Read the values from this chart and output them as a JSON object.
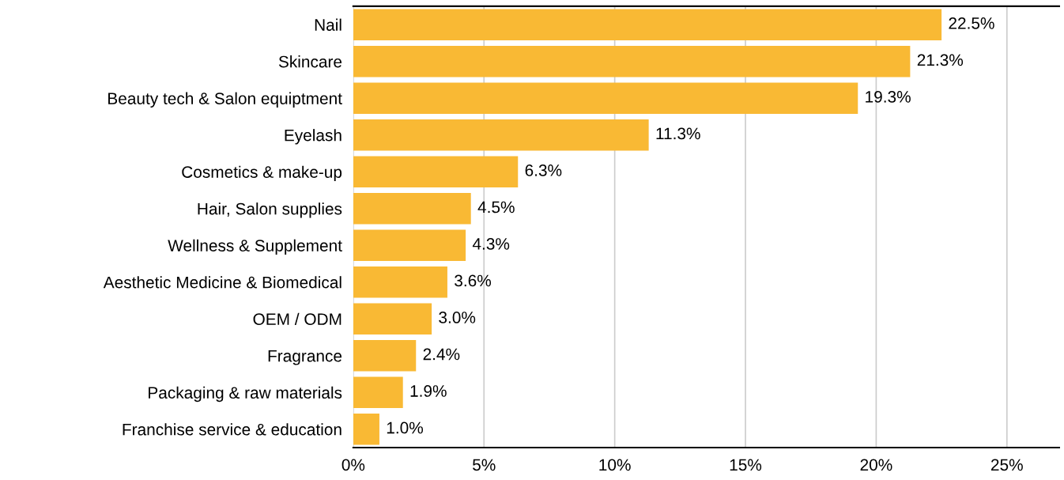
{
  "chart_data": {
    "type": "bar",
    "orientation": "horizontal",
    "categories": [
      "Nail",
      "Skincare",
      "Beauty tech & Salon equiptment",
      "Eyelash",
      "Cosmetics & make-up",
      "Hair, Salon supplies",
      "Wellness & Supplement",
      "Aesthetic Medicine & Biomedical",
      "OEM / ODM",
      "Fragrance",
      "Packaging & raw materials",
      "Franchise service & education"
    ],
    "values": [
      22.5,
      21.3,
      19.3,
      11.3,
      6.3,
      4.5,
      4.3,
      3.6,
      3.0,
      2.4,
      1.9,
      1.0
    ],
    "value_labels": [
      "22.5%",
      "21.3%",
      "19.3%",
      "11.3%",
      "6.3%",
      "4.5%",
      "4.3%",
      "3.6%",
      "3.0%",
      "2.4%",
      "1.9%",
      "1.0%"
    ],
    "color": "#f9b934",
    "xlim": [
      0,
      27
    ],
    "xticks": [
      {
        "value": 0,
        "label": "0%"
      },
      {
        "value": 5,
        "label": "5%"
      },
      {
        "value": 10,
        "label": "10%"
      },
      {
        "value": 15,
        "label": "15%"
      },
      {
        "value": 20,
        "label": "20%"
      },
      {
        "value": 25,
        "label": "25%"
      }
    ],
    "grid": "x",
    "legend": false
  }
}
